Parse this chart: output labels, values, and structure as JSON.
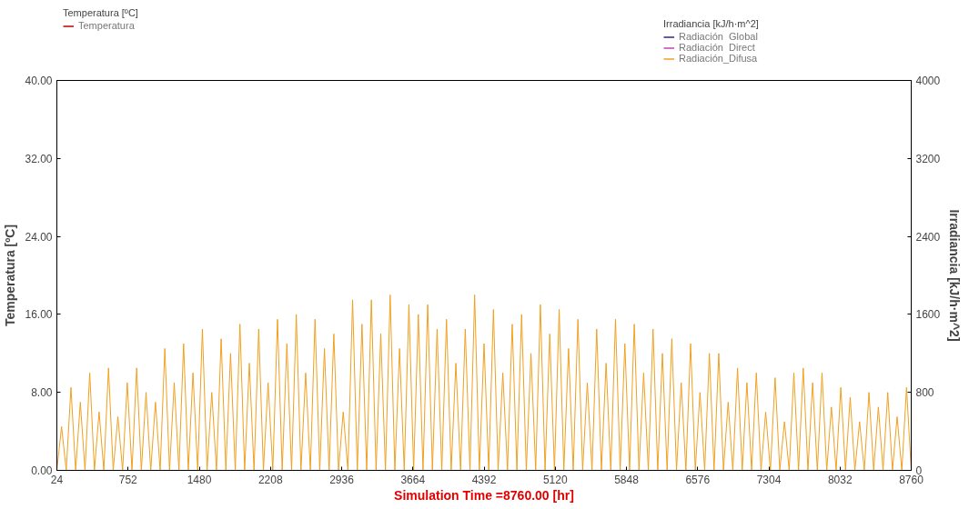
{
  "chart_data": {
    "type": "line",
    "xlabel": "Simulation Time =8760.00 [hr]",
    "ylabel": "Temperatura [ºC]",
    "y2label": "Irradiancia [kJ/h·m^2]",
    "x": [
      24,
      72,
      120,
      168,
      216,
      264,
      312,
      360,
      408,
      456,
      504,
      552,
      600,
      648,
      696,
      744,
      792,
      840,
      888,
      936,
      984,
      1032,
      1080,
      1128,
      1176,
      1224,
      1272,
      1320,
      1368,
      1416,
      1464,
      1512,
      1560,
      1608,
      1656,
      1704,
      1752,
      1800,
      1848,
      1896,
      1944,
      1992,
      2040,
      2088,
      2136,
      2184,
      2232,
      2280,
      2328,
      2376,
      2424,
      2472,
      2520,
      2568,
      2616,
      2664,
      2712,
      2760,
      2808,
      2856,
      2904,
      2952,
      3000,
      3048,
      3096,
      3144,
      3192,
      3240,
      3288,
      3336,
      3384,
      3432,
      3480,
      3528,
      3576,
      3624,
      3672,
      3720,
      3768,
      3816,
      3864,
      3912,
      3960,
      4008,
      4056,
      4104,
      4152,
      4200,
      4248,
      4296,
      4344,
      4392,
      4440,
      4488,
      4536,
      4584,
      4632,
      4680,
      4728,
      4776,
      4824,
      4872,
      4920,
      4968,
      5016,
      5064,
      5112,
      5160,
      5208,
      5256,
      5304,
      5352,
      5400,
      5448,
      5496,
      5544,
      5592,
      5640,
      5688,
      5736,
      5784,
      5832,
      5880,
      5928,
      5976,
      6024,
      6072,
      6120,
      6168,
      6216,
      6264,
      6312,
      6360,
      6408,
      6456,
      6504,
      6552,
      6600,
      6648,
      6696,
      6744,
      6792,
      6840,
      6888,
      6936,
      6984,
      7032,
      7080,
      7128,
      7176,
      7224,
      7272,
      7320,
      7368,
      7416,
      7464,
      7512,
      7560,
      7608,
      7656,
      7704,
      7752,
      7800,
      7848,
      7896,
      7944,
      7992,
      8040,
      8088,
      8136,
      8184,
      8232,
      8280,
      8328,
      8376,
      8424,
      8472,
      8520,
      8568,
      8616,
      8664,
      8712,
      8760
    ],
    "series": [
      {
        "name": "Temperatura",
        "color": "#c00000",
        "values": [
          null,
          null,
          null,
          null,
          null,
          null,
          null,
          null,
          null,
          null,
          null,
          null,
          null,
          null,
          null,
          null,
          null,
          null,
          null,
          null,
          null,
          null,
          null,
          null,
          null,
          null,
          null,
          null,
          null,
          null,
          null,
          null,
          null,
          null,
          null,
          null,
          null,
          null,
          null,
          null,
          null,
          null,
          null,
          null,
          null,
          null,
          null,
          null,
          null,
          null,
          null,
          null,
          null,
          null,
          null,
          null,
          null,
          null,
          null,
          null,
          null,
          null,
          null,
          null,
          null,
          null,
          null,
          null,
          null,
          null,
          null,
          null,
          null,
          null,
          null,
          null,
          null,
          null,
          null,
          null,
          null,
          null,
          null,
          null,
          null,
          null,
          null,
          null,
          null,
          null,
          null,
          null,
          null,
          null,
          null,
          null,
          null,
          null,
          null,
          null,
          null,
          null,
          null,
          null,
          null,
          null,
          null,
          null,
          null,
          null,
          null,
          null,
          null,
          null,
          null,
          null,
          null,
          null,
          null,
          null,
          null,
          null,
          null,
          null,
          null,
          null,
          null,
          null,
          null,
          null,
          null,
          null,
          null,
          null,
          null,
          null,
          null,
          null,
          null,
          null,
          null,
          null,
          null,
          null,
          null,
          null,
          null,
          null,
          null,
          null,
          null,
          null,
          null,
          null,
          null,
          null,
          null,
          null,
          null,
          null,
          null,
          null,
          null,
          null,
          null,
          null,
          null,
          null,
          null,
          null,
          null,
          null,
          null,
          null,
          null,
          null,
          null,
          null,
          null,
          null,
          null,
          null,
          null
        ]
      },
      {
        "name": "Radiación  Global",
        "color": "#2a2a80",
        "axis": "y2",
        "values": [
          null,
          null,
          null,
          null,
          null,
          null,
          null,
          null,
          null,
          null,
          null,
          null,
          null,
          null,
          null,
          null,
          null,
          null,
          null,
          null,
          null,
          null,
          null,
          null,
          null,
          null,
          null,
          null,
          null,
          null,
          null,
          null,
          null,
          null,
          null,
          null,
          null,
          null,
          null,
          null,
          null,
          null,
          null,
          null,
          null,
          null,
          null,
          null,
          null,
          null,
          null,
          null,
          null,
          null,
          null,
          null,
          null,
          null,
          null,
          null,
          null,
          null,
          null,
          null,
          null,
          null,
          null,
          null,
          null,
          null,
          null,
          null,
          null,
          null,
          null,
          null,
          null,
          null,
          null,
          null,
          null,
          null,
          null,
          null,
          null,
          null,
          null,
          null,
          null,
          null,
          null,
          null,
          null,
          null,
          null,
          null,
          null,
          null,
          null,
          null,
          null,
          null,
          null,
          null,
          null,
          null,
          null,
          null,
          null,
          null,
          null,
          null,
          null,
          null,
          null,
          null,
          null,
          null,
          null,
          null,
          null,
          null,
          null,
          null,
          null,
          null,
          null,
          null,
          null,
          null,
          null,
          null,
          null,
          null,
          null,
          null,
          null,
          null,
          null,
          null,
          null,
          null,
          null,
          null,
          null,
          null,
          null,
          null,
          null,
          null,
          null,
          null,
          null,
          null,
          null,
          null,
          null,
          null,
          null,
          null,
          null,
          null,
          null,
          null,
          null,
          null,
          null,
          null,
          null,
          null,
          null,
          null,
          null,
          null,
          null,
          null,
          null,
          null,
          null,
          null,
          null,
          null,
          null
        ]
      },
      {
        "name": "Radiación  Direct",
        "color": "#c040c0",
        "axis": "y2",
        "values": [
          null,
          null,
          null,
          null,
          null,
          null,
          null,
          null,
          null,
          null,
          null,
          null,
          null,
          null,
          null,
          null,
          null,
          null,
          null,
          null,
          null,
          null,
          null,
          null,
          null,
          null,
          null,
          null,
          null,
          null,
          null,
          null,
          null,
          null,
          null,
          null,
          null,
          null,
          null,
          null,
          null,
          null,
          null,
          null,
          null,
          null,
          null,
          null,
          null,
          null,
          null,
          null,
          null,
          null,
          null,
          null,
          null,
          null,
          null,
          null,
          null,
          null,
          null,
          null,
          null,
          null,
          null,
          null,
          null,
          null,
          null,
          null,
          null,
          null,
          null,
          null,
          null,
          null,
          null,
          null,
          null,
          null,
          null,
          null,
          null,
          null,
          null,
          null,
          null,
          null,
          null,
          null,
          null,
          null,
          null,
          null,
          null,
          null,
          null,
          null,
          null,
          null,
          null,
          null,
          null,
          null,
          null,
          null,
          null,
          null,
          null,
          null,
          null,
          null,
          null,
          null,
          null,
          null,
          null,
          null,
          null,
          null,
          null,
          null,
          null,
          null,
          null,
          null,
          null,
          null,
          null,
          null,
          null,
          null,
          null,
          null,
          null,
          null,
          null,
          null,
          null,
          null,
          null,
          null,
          null,
          null,
          null,
          null,
          null,
          null,
          null,
          null,
          null,
          null,
          null,
          null,
          null,
          null,
          null,
          null,
          null,
          null,
          null,
          null,
          null,
          null,
          null,
          null,
          null,
          null,
          null,
          null,
          null,
          null,
          null,
          null,
          null,
          null,
          null,
          null,
          null,
          null,
          null
        ]
      },
      {
        "name": "Radiación_Difusa",
        "color": "#f0a020",
        "axis": "y2",
        "values": [
          0,
          450,
          0,
          850,
          0,
          700,
          0,
          1000,
          0,
          600,
          0,
          1050,
          0,
          550,
          0,
          900,
          0,
          1050,
          0,
          800,
          0,
          700,
          0,
          1250,
          0,
          900,
          0,
          1300,
          0,
          1000,
          0,
          1450,
          0,
          800,
          0,
          1350,
          0,
          1200,
          0,
          1500,
          0,
          1100,
          0,
          1450,
          0,
          900,
          0,
          1550,
          0,
          1300,
          0,
          1600,
          0,
          1000,
          0,
          1550,
          0,
          1250,
          0,
          1400,
          0,
          600,
          0,
          1750,
          0,
          1500,
          0,
          1750,
          0,
          1400,
          0,
          1800,
          0,
          1250,
          0,
          1700,
          0,
          1600,
          0,
          1700,
          0,
          1450,
          0,
          1550,
          0,
          1100,
          0,
          1450,
          0,
          1800,
          0,
          1300,
          0,
          1650,
          0,
          1000,
          0,
          1500,
          0,
          1600,
          0,
          1200,
          0,
          1700,
          0,
          1400,
          0,
          1650,
          0,
          1250,
          0,
          1550,
          0,
          900,
          0,
          1450,
          0,
          1100,
          0,
          1550,
          0,
          1300,
          0,
          1500,
          0,
          1000,
          0,
          1450,
          0,
          1200,
          0,
          1350,
          0,
          900,
          0,
          1300,
          0,
          800,
          0,
          1200,
          0,
          1200,
          0,
          700,
          0,
          1050,
          0,
          900,
          0,
          1000,
          0,
          600,
          0,
          950,
          0,
          500,
          0,
          1000,
          0,
          1050,
          0,
          900,
          0,
          1000,
          0,
          650,
          0,
          850,
          0,
          750,
          0,
          500,
          0,
          800,
          0,
          650,
          0,
          800,
          0,
          550,
          0,
          850,
          0
        ]
      }
    ],
    "xlim": [
      24,
      8760
    ],
    "xticks": [
      24,
      752,
      1480,
      2208,
      2936,
      3664,
      4392,
      5120,
      5848,
      6576,
      7304,
      8032,
      8760
    ],
    "ylim": [
      0,
      40
    ],
    "yticks": [
      {
        "value": 0,
        "label": "0.00"
      },
      {
        "value": 8,
        "label": "8.00"
      },
      {
        "value": 16,
        "label": "16.00"
      },
      {
        "value": 24,
        "label": "24.00"
      },
      {
        "value": 32,
        "label": "32.00"
      },
      {
        "value": 40,
        "label": "40.00"
      }
    ],
    "y2lim": [
      0,
      4000
    ],
    "y2ticks": [
      0,
      800,
      1600,
      2400,
      3200,
      4000
    ],
    "grid": false,
    "legend": "top",
    "line_style": "solid",
    "marker": "none"
  }
}
